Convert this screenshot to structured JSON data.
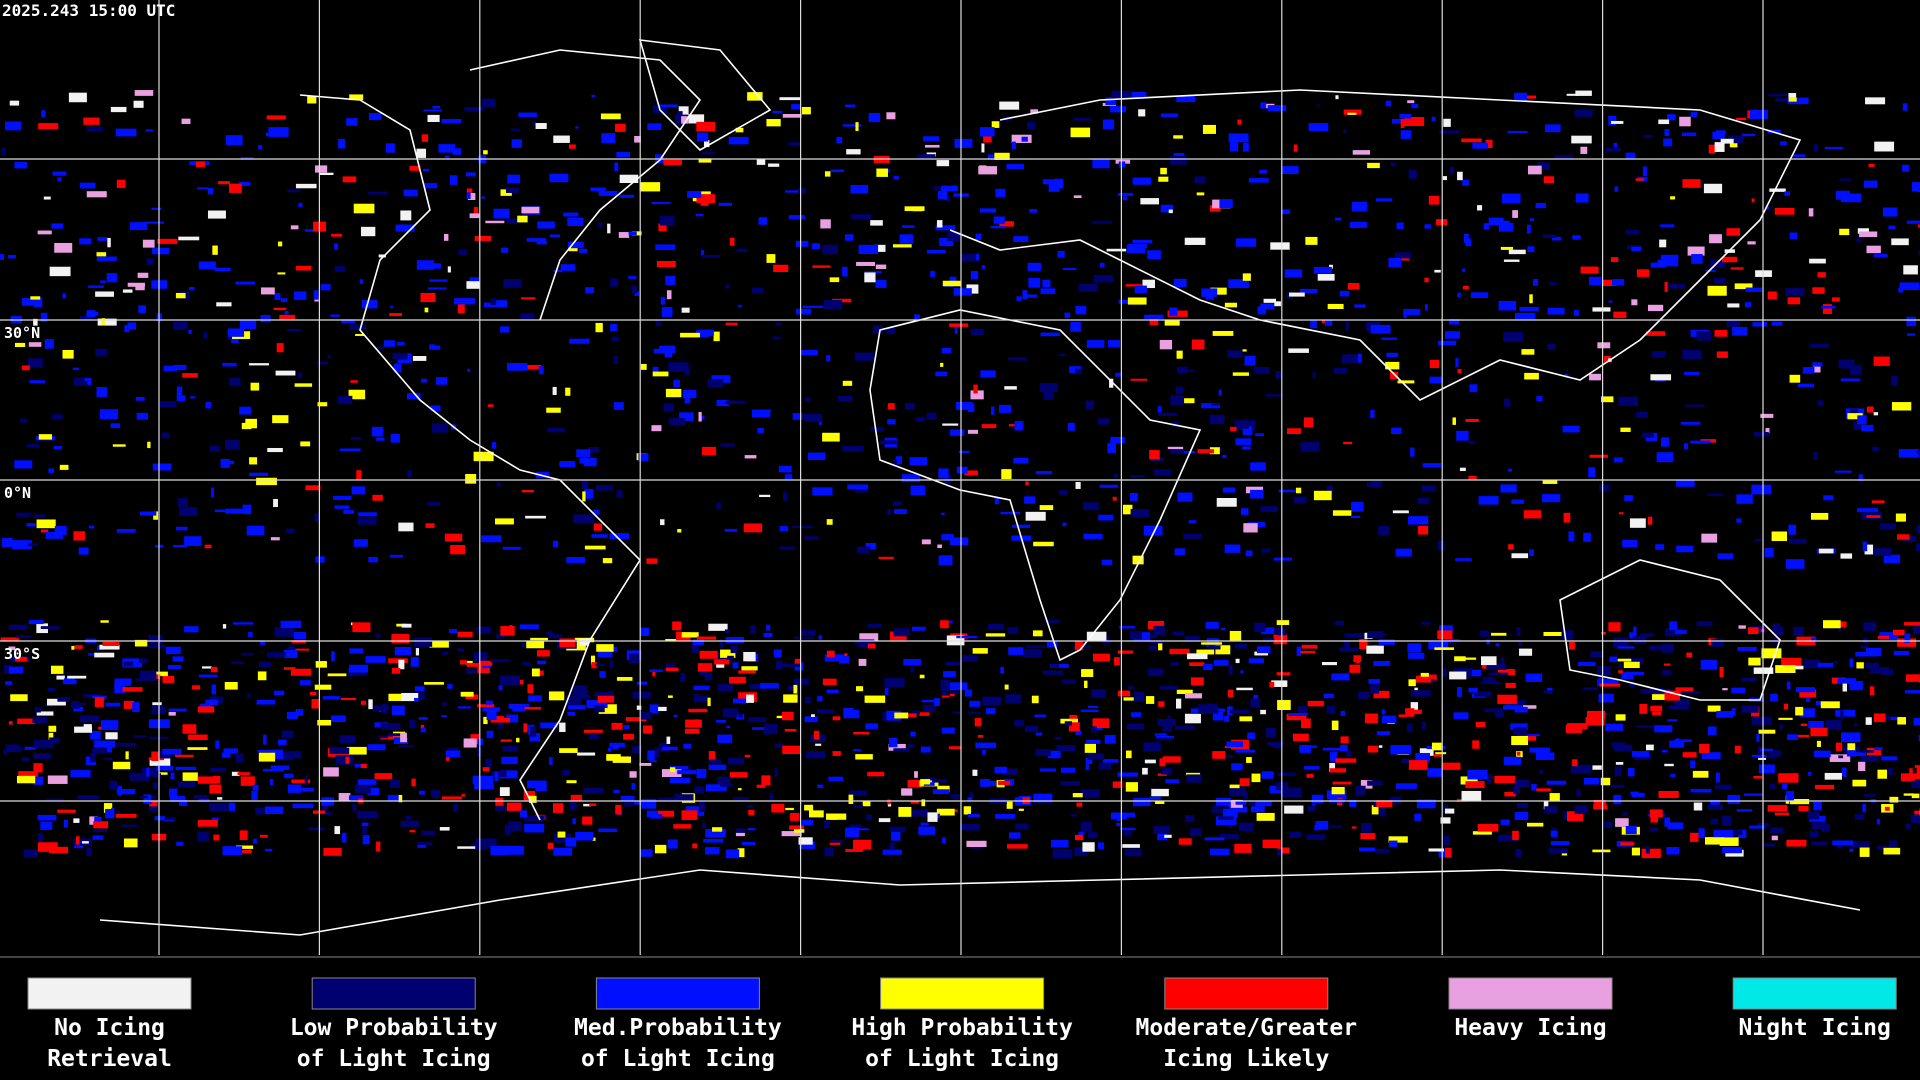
{
  "timestamp": "2025.243 15:00 UTC",
  "latitude_labels": [
    "30°N",
    "0°N",
    "30°S"
  ],
  "legend": [
    {
      "lines": [
        "No Icing",
        "Retrieval"
      ],
      "color": "#f2f2f2"
    },
    {
      "lines": [
        "Low Probability",
        "of Light Icing"
      ],
      "color": "#00006e"
    },
    {
      "lines": [
        "Med.Probability",
        "of Light Icing"
      ],
      "color": "#0010ff"
    },
    {
      "lines": [
        "High Probability",
        "of Light Icing"
      ],
      "color": "#ffff00"
    },
    {
      "lines": [
        "Moderate/Greater",
        "Icing Likely"
      ],
      "color": "#ff0000"
    },
    {
      "lines": [
        "Heavy Icing"
      ],
      "color": "#e8a0e0"
    },
    {
      "lines": [
        "Night Icing"
      ],
      "color": "#00e8e8"
    }
  ]
}
